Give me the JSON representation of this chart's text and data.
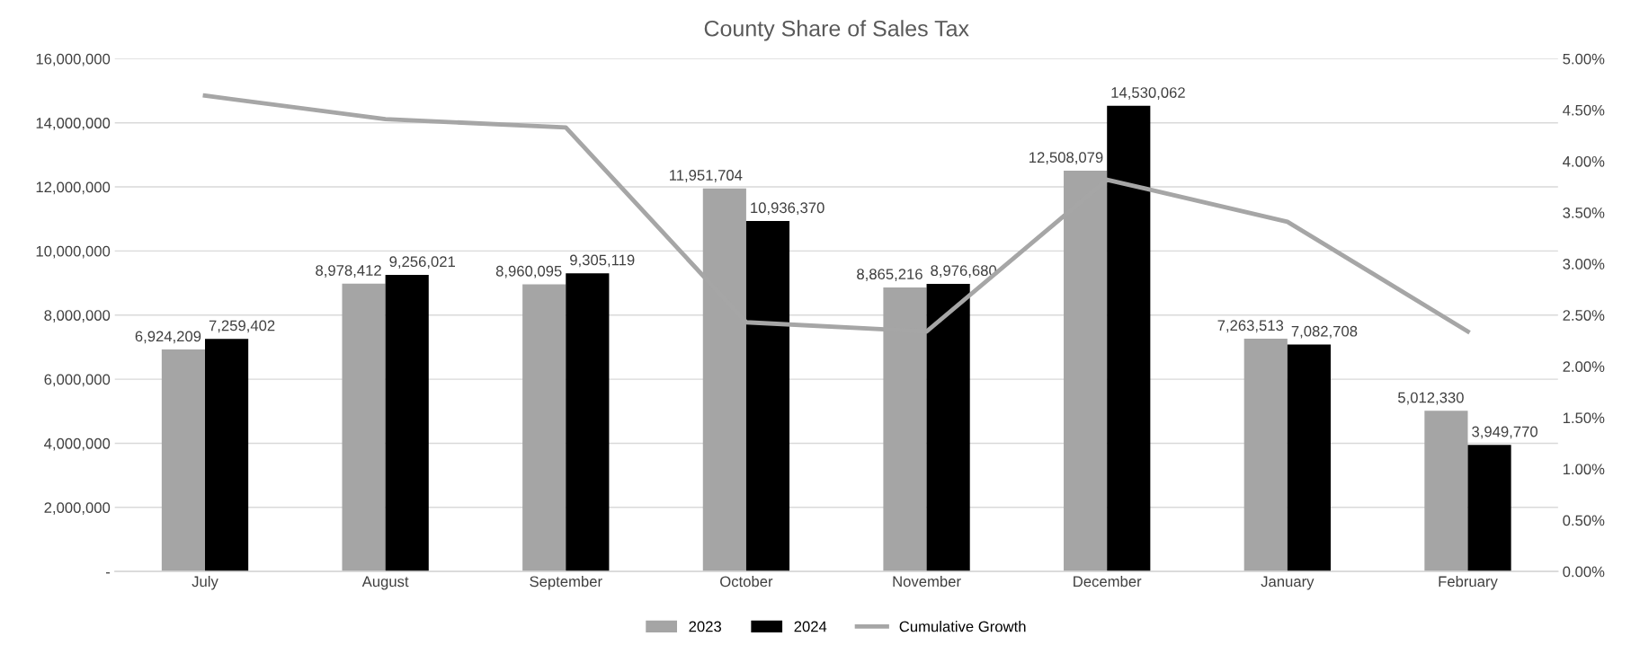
{
  "chart_data": {
    "type": "bar",
    "title": "County Share of Sales Tax",
    "categories": [
      "July",
      "August",
      "September",
      "October",
      "November",
      "December",
      "January",
      "February"
    ],
    "series": [
      {
        "name": "2023",
        "color": "#a5a5a5",
        "values": [
          6924209,
          8978412,
          8960095,
          11951704,
          8865216,
          12508079,
          7263513,
          5012330
        ],
        "value_labels": [
          "6,924,209",
          "8,978,412",
          "8,960,095",
          "11,951,704",
          "8,865,216",
          "12,508,079",
          "7,263,513",
          "5,012,330"
        ]
      },
      {
        "name": "2024",
        "color": "#000000",
        "values": [
          7259402,
          9256021,
          9305119,
          10936370,
          8976680,
          14530062,
          7082708,
          3949770
        ],
        "value_labels": [
          "7,259,402",
          "9,256,021",
          "9,305,119",
          "10,936,370",
          "8,976,680",
          "14,530,062",
          "7,082,708",
          "3,949,770"
        ]
      },
      {
        "name": "Cumulative Growth",
        "type": "line",
        "axis": "y2",
        "color": "#a6a6a6",
        "values": [
          4.64,
          4.41,
          4.33,
          2.43,
          2.34,
          3.82,
          3.41,
          2.34
        ]
      }
    ],
    "ylim": [
      0,
      16000000
    ],
    "yticks": [
      {
        "value": 0,
        "label": "-"
      },
      {
        "value": 2000000,
        "label": "2,000,000"
      },
      {
        "value": 4000000,
        "label": "4,000,000"
      },
      {
        "value": 6000000,
        "label": "6,000,000"
      },
      {
        "value": 8000000,
        "label": "8,000,000"
      },
      {
        "value": 10000000,
        "label": "10,000,000"
      },
      {
        "value": 12000000,
        "label": "12,000,000"
      },
      {
        "value": 14000000,
        "label": "14,000,000"
      },
      {
        "value": 16000000,
        "label": "16,000,000"
      }
    ],
    "y2lim": [
      0,
      5
    ],
    "y2ticks": [
      {
        "value": 0,
        "label": "0.00%"
      },
      {
        "value": 0.5,
        "label": "0.50%"
      },
      {
        "value": 1,
        "label": "1.00%"
      },
      {
        "value": 1.5,
        "label": "1.50%"
      },
      {
        "value": 2,
        "label": "2.00%"
      },
      {
        "value": 2.5,
        "label": "2.50%"
      },
      {
        "value": 3,
        "label": "3.00%"
      },
      {
        "value": 3.5,
        "label": "3.50%"
      },
      {
        "value": 4,
        "label": "4.00%"
      },
      {
        "value": 4.5,
        "label": "4.50%"
      },
      {
        "value": 5,
        "label": "5.00%"
      }
    ],
    "grid": "y",
    "legend": "bottom"
  }
}
